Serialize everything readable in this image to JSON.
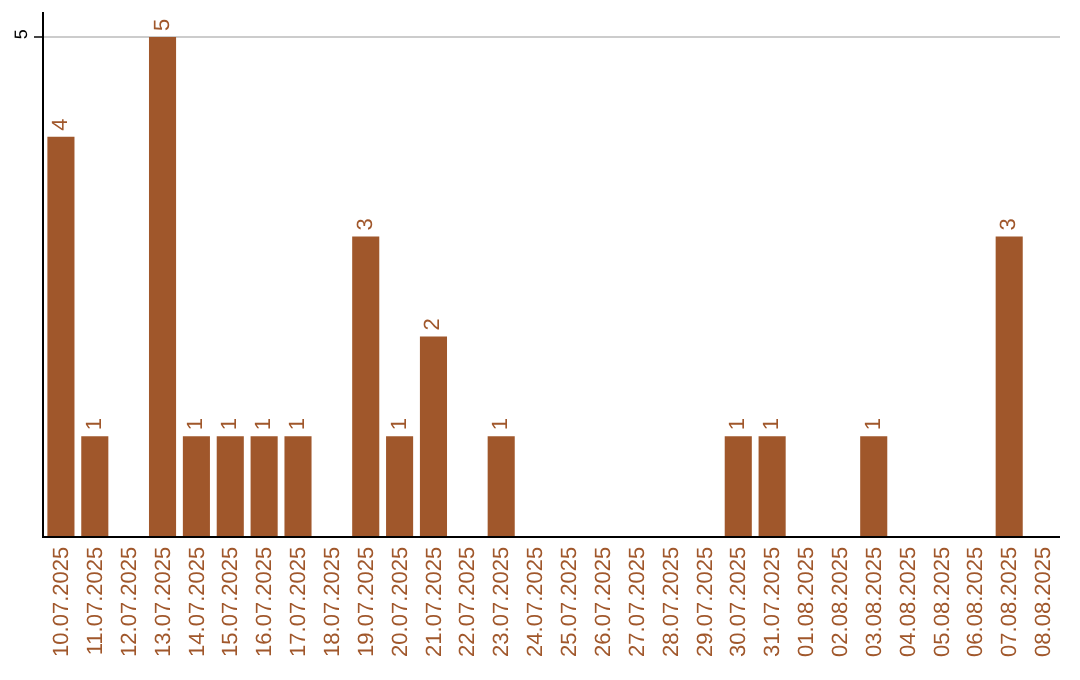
{
  "chart_data": {
    "type": "bar",
    "categories": [
      "10.07.2025",
      "11.07.2025",
      "12.07.2025",
      "13.07.2025",
      "14.07.2025",
      "15.07.2025",
      "16.07.2025",
      "17.07.2025",
      "18.07.2025",
      "19.07.2025",
      "20.07.2025",
      "21.07.2025",
      "22.07.2025",
      "23.07.2025",
      "24.07.2025",
      "25.07.2025",
      "26.07.2025",
      "27.07.2025",
      "28.07.2025",
      "29.07.2025",
      "30.07.2025",
      "31.07.2025",
      "01.08.2025",
      "02.08.2025",
      "03.08.2025",
      "04.08.2025",
      "05.08.2025",
      "06.08.2025",
      "07.08.2025",
      "08.08.2025"
    ],
    "values": [
      4,
      1,
      0,
      5,
      1,
      1,
      1,
      1,
      0,
      3,
      1,
      2,
      0,
      1,
      0,
      0,
      0,
      0,
      0,
      0,
      1,
      1,
      0,
      0,
      1,
      0,
      0,
      0,
      3,
      0
    ],
    "value_labels": [
      "4",
      "1",
      null,
      "5",
      "1",
      "1",
      "1",
      "1",
      null,
      "3",
      "1",
      "2",
      null,
      "1",
      null,
      null,
      null,
      null,
      null,
      null,
      "1",
      "1",
      null,
      null,
      "1",
      null,
      null,
      null,
      "3",
      null
    ],
    "color": "#a0572b",
    "ylim": [
      0,
      5.25
    ],
    "yticks": [
      5
    ],
    "grid": "y",
    "legend": false
  }
}
